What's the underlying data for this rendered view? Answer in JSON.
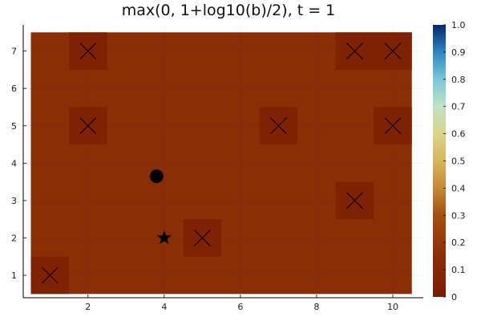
{
  "chart_data": {
    "type": "heatmap",
    "title": "max(0, 1+log10(b)/2), t = 1",
    "xlabel": "",
    "ylabel": "",
    "grid": true,
    "x_range": [
      0.3,
      10.8
    ],
    "y_range": [
      0.4,
      7.7
    ],
    "x_ticks": [
      2,
      4,
      6,
      8,
      10
    ],
    "y_ticks": [
      1,
      2,
      3,
      4,
      5,
      6,
      7
    ],
    "grid_x": [
      1,
      10
    ],
    "grid_y": [
      1,
      7
    ],
    "field_value": 0.15,
    "cells": [
      {
        "x": 1,
        "y": 1,
        "value": 0.05
      },
      {
        "x": 2,
        "y": 7,
        "value": 0.05
      },
      {
        "x": 2,
        "y": 5,
        "value": 0.05
      },
      {
        "x": 5,
        "y": 2,
        "value": 0.05
      },
      {
        "x": 7,
        "y": 5,
        "value": 0.05
      },
      {
        "x": 9,
        "y": 7,
        "value": 0.05
      },
      {
        "x": 9,
        "y": 3,
        "value": 0.05
      },
      {
        "x": 10,
        "y": 7,
        "value": 0.05
      },
      {
        "x": 10,
        "y": 5,
        "value": 0.05
      }
    ],
    "x_markers": [
      {
        "x": 1,
        "y": 1
      },
      {
        "x": 2,
        "y": 7
      },
      {
        "x": 2,
        "y": 5
      },
      {
        "x": 5,
        "y": 2
      },
      {
        "x": 7,
        "y": 5
      },
      {
        "x": 9,
        "y": 7
      },
      {
        "x": 9,
        "y": 3
      },
      {
        "x": 10,
        "y": 7
      },
      {
        "x": 10,
        "y": 5
      }
    ],
    "circle_marker": {
      "x": 3.8,
      "y": 3.65
    },
    "star_marker": {
      "x": 4.0,
      "y": 2.0
    },
    "colorbar": {
      "min": 0,
      "max": 1,
      "ticks": [
        "0",
        "0.1",
        "0.2",
        "0.3",
        "0.4",
        "0.5",
        "0.6",
        "0.7",
        "0.8",
        "0.9",
        "1.0"
      ],
      "stops": [
        {
          "v": 0.0,
          "color": "#7a1c02"
        },
        {
          "v": 0.15,
          "color": "#8a2e08"
        },
        {
          "v": 0.3,
          "color": "#a34f12"
        },
        {
          "v": 0.4,
          "color": "#c4893a"
        },
        {
          "v": 0.5,
          "color": "#d9b55c"
        },
        {
          "v": 0.6,
          "color": "#d9d48a"
        },
        {
          "v": 0.7,
          "color": "#bfe4c5"
        },
        {
          "v": 0.8,
          "color": "#7ac9d8"
        },
        {
          "v": 0.9,
          "color": "#2f86c0"
        },
        {
          "v": 1.0,
          "color": "#06276e"
        }
      ]
    }
  }
}
